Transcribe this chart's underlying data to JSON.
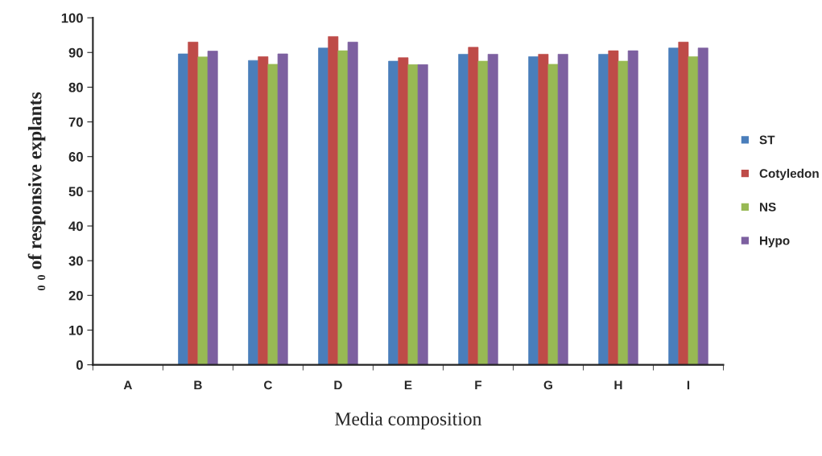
{
  "chart_data": {
    "type": "bar",
    "xlabel": "Media composition",
    "ylabel": "₀ ₀ of responsive explants",
    "categories": [
      "A",
      "B",
      "C",
      "D",
      "E",
      "F",
      "G",
      "H",
      "I"
    ],
    "series": [
      {
        "name": "ST",
        "color": "#4a7ebb",
        "values": [
          0,
          89.6,
          87.7,
          91.3,
          87.5,
          89.5,
          88.8,
          89.5,
          91.3
        ]
      },
      {
        "name": "Cotyledon",
        "color": "#be4b48",
        "values": [
          0,
          93,
          88.8,
          94.6,
          88.5,
          91.5,
          89.5,
          90.5,
          93
        ]
      },
      {
        "name": "NS",
        "color": "#98b954",
        "values": [
          0,
          88.7,
          86.6,
          90.5,
          86.5,
          87.5,
          86.6,
          87.5,
          88.8
        ]
      },
      {
        "name": "Hypo",
        "color": "#7d60a0",
        "values": [
          0,
          90.4,
          89.6,
          93,
          86.5,
          89.5,
          89.5,
          90.5,
          91.3
        ]
      }
    ],
    "ylim": [
      0,
      100
    ],
    "yticks": [
      0,
      10,
      20,
      30,
      40,
      50,
      60,
      70,
      80,
      90,
      100
    ],
    "grid": false,
    "legend": "right"
  }
}
